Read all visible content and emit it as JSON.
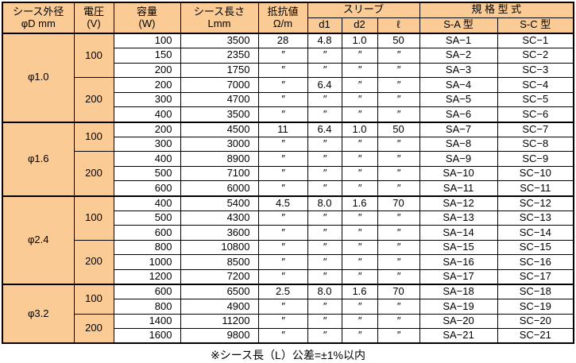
{
  "colors": {
    "header_fill": "#fbcb96",
    "border": "#000000",
    "cell_fill": "#ffffff",
    "text": "#000000"
  },
  "table": {
    "headers": {
      "sheath_od_line1": "シース外径",
      "sheath_od_line2": "φD mm",
      "voltage_line1": "電圧",
      "voltage_line2": "(V)",
      "capacity_line1": "容量",
      "capacity_line2": "(W)",
      "length_line1": "シース長さ",
      "length_line2": "Lmm",
      "resistance_line1": "抵抗値",
      "resistance_line2": "Ω/m",
      "sleeve": "スリーブ",
      "sleeve_d1": "d1",
      "sleeve_d2": "d2",
      "sleeve_l": "ℓ",
      "standard": "規 格 型 式",
      "standard_sa": "S-A 型",
      "standard_sc": "S-C 型"
    },
    "ditto_mark": "″",
    "groups": [
      {
        "diameter": "φ1.0",
        "voltage_groups": [
          {
            "voltage": "100",
            "rows": [
              {
                "capacity": "100",
                "length": "3500",
                "resistance": "28",
                "d1": "4.8",
                "d2": "1.0",
                "l": "50",
                "sa": "SA−1",
                "sc": "SC−1"
              },
              {
                "capacity": "150",
                "length": "2350",
                "resistance": "″",
                "d1": "″",
                "d2": "″",
                "l": "″",
                "sa": "SA−2",
                "sc": "SC−2"
              },
              {
                "capacity": "200",
                "length": "1750",
                "resistance": "″",
                "d1": "″",
                "d2": "″",
                "l": "″",
                "sa": "SA−3",
                "sc": "SC−3"
              }
            ]
          },
          {
            "voltage": "200",
            "rows": [
              {
                "capacity": "200",
                "length": "7000",
                "resistance": "″",
                "d1": "6.4",
                "d2": "″",
                "l": "″",
                "sa": "SA−4",
                "sc": "SC−4"
              },
              {
                "capacity": "300",
                "length": "4700",
                "resistance": "″",
                "d1": "″",
                "d2": "″",
                "l": "″",
                "sa": "SA−5",
                "sc": "SC−5"
              },
              {
                "capacity": "400",
                "length": "3500",
                "resistance": "″",
                "d1": "″",
                "d2": "″",
                "l": "″",
                "sa": "SA−6",
                "sc": "SC−6"
              }
            ]
          }
        ]
      },
      {
        "diameter": "φ1.6",
        "voltage_groups": [
          {
            "voltage": "100",
            "rows": [
              {
                "capacity": "200",
                "length": "4500",
                "resistance": "11",
                "d1": "6.4",
                "d2": "1.0",
                "l": "50",
                "sa": "SA−7",
                "sc": "SC−7"
              },
              {
                "capacity": "300",
                "length": "3000",
                "resistance": "″",
                "d1": "″",
                "d2": "″",
                "l": "″",
                "sa": "SA−8",
                "sc": "SC−8"
              }
            ]
          },
          {
            "voltage": "200",
            "rows": [
              {
                "capacity": "400",
                "length": "8900",
                "resistance": "″",
                "d1": "″",
                "d2": "″",
                "l": "″",
                "sa": "SA−9",
                "sc": "SC−9"
              },
              {
                "capacity": "500",
                "length": "7100",
                "resistance": "″",
                "d1": "″",
                "d2": "″",
                "l": "″",
                "sa": "SA−10",
                "sc": "SC−10"
              },
              {
                "capacity": "600",
                "length": "6000",
                "resistance": "″",
                "d1": "″",
                "d2": "″",
                "l": "″",
                "sa": "SA−11",
                "sc": "SC−11"
              }
            ]
          }
        ]
      },
      {
        "diameter": "φ2.4",
        "voltage_groups": [
          {
            "voltage": "100",
            "rows": [
              {
                "capacity": "400",
                "length": "5400",
                "resistance": "4.5",
                "d1": "8.0",
                "d2": "1.6",
                "l": "70",
                "sa": "SA−12",
                "sc": "SC−12"
              },
              {
                "capacity": "500",
                "length": "4300",
                "resistance": "″",
                "d1": "″",
                "d2": "″",
                "l": "″",
                "sa": "SA−13",
                "sc": "SC−13"
              },
              {
                "capacity": "600",
                "length": "3600",
                "resistance": "″",
                "d1": "″",
                "d2": "″",
                "l": "″",
                "sa": "SA−14",
                "sc": "SC−14"
              }
            ]
          },
          {
            "voltage": "200",
            "rows": [
              {
                "capacity": "800",
                "length": "10800",
                "resistance": "″",
                "d1": "″",
                "d2": "″",
                "l": "″",
                "sa": "SA−15",
                "sc": "SC−15"
              },
              {
                "capacity": "1000",
                "length": "8500",
                "resistance": "″",
                "d1": "″",
                "d2": "″",
                "l": "″",
                "sa": "SA−16",
                "sc": "SC−16"
              },
              {
                "capacity": "1200",
                "length": "7200",
                "resistance": "″",
                "d1": "″",
                "d2": "″",
                "l": "″",
                "sa": "SA−17",
                "sc": "SC−17"
              }
            ]
          }
        ]
      },
      {
        "diameter": "φ3.2",
        "voltage_groups": [
          {
            "voltage": "100",
            "rows": [
              {
                "capacity": "600",
                "length": "6500",
                "resistance": "2.5",
                "d1": "8.0",
                "d2": "1.6",
                "l": "70",
                "sa": "SA−18",
                "sc": "SC−18"
              },
              {
                "capacity": "800",
                "length": "4900",
                "resistance": "″",
                "d1": "″",
                "d2": "″",
                "l": "″",
                "sa": "SA−19",
                "sc": "SC−19"
              }
            ]
          },
          {
            "voltage": "200",
            "rows": [
              {
                "capacity": "1400",
                "length": "11200",
                "resistance": "″",
                "d1": "″",
                "d2": "″",
                "l": "″",
                "sa": "SA−20",
                "sc": "SC−20"
              },
              {
                "capacity": "1600",
                "length": "9800",
                "resistance": "″",
                "d1": "″",
                "d2": "″",
                "l": "″",
                "sa": "SA−21",
                "sc": "SC−21"
              }
            ]
          }
        ]
      }
    ]
  },
  "footer": {
    "note": "※シース長（L）公差=±1%以内"
  }
}
